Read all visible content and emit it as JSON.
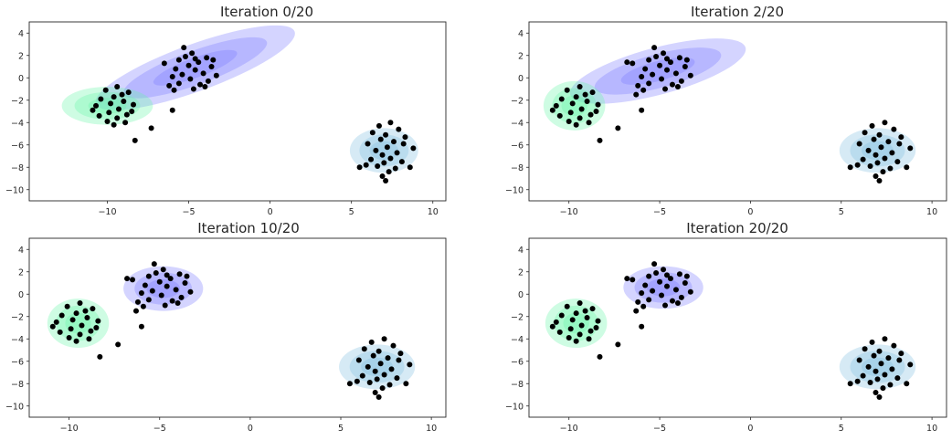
{
  "chart_data": [
    {
      "type": "scatter",
      "title": "Iteration 0/20",
      "xlim": [
        -14.8,
        10.8
      ],
      "ylim": [
        -11,
        5
      ],
      "xticks": [
        "−10",
        "−5",
        "0",
        "5",
        "10"
      ],
      "xtick_values": [
        -10,
        -5,
        0,
        5,
        10
      ],
      "yticks": [
        "4",
        "2",
        "0",
        "−2",
        "−4",
        "−6",
        "−8",
        "−10"
      ],
      "ytick_values": [
        4,
        2,
        0,
        -2,
        -4,
        -6,
        -8,
        -10
      ],
      "grid": false,
      "components": [
        {
          "color": "#7a7aff",
          "center": [
            -4.6,
            0.9
          ],
          "sd": [
            6.5,
            2.1
          ],
          "angle_deg": 20
        },
        {
          "color": "#66f5a8",
          "center": [
            -10.0,
            -2.5
          ],
          "sd": [
            2.8,
            1.7
          ],
          "angle_deg": 0
        },
        {
          "color": "#7fbfe0",
          "center": [
            7.0,
            -6.5
          ],
          "sd": [
            2.1,
            2.0
          ],
          "angle_deg": 0
        }
      ]
    },
    {
      "type": "scatter",
      "title": "Iteration 2/20",
      "xlim": [
        -12.2,
        10.8
      ],
      "ylim": [
        -11,
        5
      ],
      "xticks": [
        "−10",
        "−5",
        "0",
        "5",
        "10"
      ],
      "xtick_values": [
        -10,
        -5,
        0,
        5,
        10
      ],
      "yticks": [
        "4",
        "2",
        "0",
        "−2",
        "−4",
        "−6",
        "−8",
        "−10"
      ],
      "ytick_values": [
        4,
        2,
        0,
        -2,
        -4,
        -6,
        -8,
        -10
      ],
      "grid": false,
      "components": [
        {
          "color": "#7a7aff",
          "center": [
            -5.1,
            0.6
          ],
          "sd": [
            5.0,
            2.1
          ],
          "angle_deg": 15
        },
        {
          "color": "#66f5a8",
          "center": [
            -9.7,
            -2.5
          ],
          "sd": [
            1.7,
            2.2
          ],
          "angle_deg": 0
        },
        {
          "color": "#7fbfe0",
          "center": [
            7.0,
            -6.5
          ],
          "sd": [
            2.1,
            2.0
          ],
          "angle_deg": 0
        }
      ]
    },
    {
      "type": "scatter",
      "title": "Iteration 10/20",
      "xlim": [
        -12.2,
        10.8
      ],
      "ylim": [
        -11,
        5
      ],
      "xticks": [
        "−10",
        "−5",
        "0",
        "5",
        "10"
      ],
      "xtick_values": [
        -10,
        -5,
        0,
        5,
        10
      ],
      "yticks": [
        "4",
        "2",
        "0",
        "−2",
        "−4",
        "−6",
        "−8",
        "−10"
      ],
      "ytick_values": [
        4,
        2,
        0,
        -2,
        -4,
        -6,
        -8,
        -10
      ],
      "grid": false,
      "components": [
        {
          "color": "#7a7aff",
          "center": [
            -4.8,
            0.5
          ],
          "sd": [
            2.2,
            2.0
          ],
          "angle_deg": 0
        },
        {
          "color": "#66f5a8",
          "center": [
            -9.5,
            -2.6
          ],
          "sd": [
            1.7,
            2.2
          ],
          "angle_deg": 0
        },
        {
          "color": "#7fbfe0",
          "center": [
            7.0,
            -6.5
          ],
          "sd": [
            2.1,
            2.0
          ],
          "angle_deg": 0
        }
      ]
    },
    {
      "type": "scatter",
      "title": "Iteration 20/20",
      "xlim": [
        -12.2,
        10.8
      ],
      "ylim": [
        -11,
        5
      ],
      "xticks": [
        "−10",
        "−5",
        "0",
        "5",
        "10"
      ],
      "xtick_values": [
        -10,
        -5,
        0,
        5,
        10
      ],
      "yticks": [
        "4",
        "2",
        "0",
        "−2",
        "−4",
        "−6",
        "−8",
        "−10"
      ],
      "ytick_values": [
        4,
        2,
        0,
        -2,
        -4,
        -6,
        -8,
        -10
      ],
      "grid": false,
      "components": [
        {
          "color": "#7a7aff",
          "center": [
            -4.8,
            0.6
          ],
          "sd": [
            2.2,
            1.9
          ],
          "angle_deg": 0
        },
        {
          "color": "#66f5a8",
          "center": [
            -9.6,
            -2.6
          ],
          "sd": [
            1.7,
            2.2
          ],
          "angle_deg": 0
        },
        {
          "color": "#7fbfe0",
          "center": [
            7.0,
            -6.5
          ],
          "sd": [
            2.1,
            2.0
          ],
          "angle_deg": 0
        }
      ]
    }
  ],
  "points": [
    [
      -5.3,
      2.7
    ],
    [
      -4.8,
      2.2
    ],
    [
      -3.9,
      1.8
    ],
    [
      -5.6,
      1.6
    ],
    [
      -4.4,
      1.4
    ],
    [
      -6.5,
      1.3
    ],
    [
      -5.0,
      1.1
    ],
    [
      -3.6,
      1.0
    ],
    [
      -5.8,
      0.8
    ],
    [
      -4.6,
      0.7
    ],
    [
      -4.1,
      0.4
    ],
    [
      -5.4,
      0.3
    ],
    [
      -3.3,
      0.2
    ],
    [
      -6.0,
      0.1
    ],
    [
      -4.9,
      -0.1
    ],
    [
      -3.8,
      -0.3
    ],
    [
      -5.6,
      -0.5
    ],
    [
      -4.3,
      -0.6
    ],
    [
      -4.7,
      -1.0
    ],
    [
      -5.9,
      -1.1
    ],
    [
      -5.2,
      1.9
    ],
    [
      -3.5,
      1.6
    ],
    [
      -6.2,
      -0.7
    ],
    [
      -4.0,
      -0.8
    ],
    [
      -4.6,
      1.7
    ],
    [
      -9.4,
      -0.8
    ],
    [
      -10.1,
      -1.1
    ],
    [
      -8.7,
      -1.3
    ],
    [
      -9.6,
      -1.7
    ],
    [
      -10.4,
      -1.9
    ],
    [
      -9.0,
      -2.1
    ],
    [
      -9.8,
      -2.3
    ],
    [
      -8.4,
      -2.4
    ],
    [
      -10.7,
      -2.5
    ],
    [
      -9.3,
      -2.8
    ],
    [
      -9.9,
      -3.1
    ],
    [
      -8.8,
      -3.3
    ],
    [
      -10.5,
      -3.4
    ],
    [
      -9.4,
      -3.6
    ],
    [
      -10.0,
      -3.9
    ],
    [
      -8.9,
      -4.0
    ],
    [
      -9.6,
      -4.2
    ],
    [
      -8.5,
      -3.0
    ],
    [
      -10.9,
      -2.9
    ],
    [
      -9.1,
      -1.5
    ],
    [
      7.4,
      -4.0
    ],
    [
      6.7,
      -4.3
    ],
    [
      7.9,
      -4.6
    ],
    [
      6.3,
      -4.9
    ],
    [
      7.1,
      -5.1
    ],
    [
      8.3,
      -5.3
    ],
    [
      6.8,
      -5.5
    ],
    [
      7.6,
      -5.7
    ],
    [
      6.0,
      -5.9
    ],
    [
      8.8,
      -6.3
    ],
    [
      7.2,
      -6.2
    ],
    [
      6.5,
      -6.5
    ],
    [
      7.8,
      -6.7
    ],
    [
      6.9,
      -6.9
    ],
    [
      7.4,
      -7.2
    ],
    [
      6.2,
      -7.3
    ],
    [
      8.1,
      -7.5
    ],
    [
      7.0,
      -7.6
    ],
    [
      6.6,
      -7.9
    ],
    [
      5.9,
      -7.8
    ],
    [
      7.7,
      -8.1
    ],
    [
      8.6,
      -8.0
    ],
    [
      7.3,
      -8.4
    ],
    [
      6.9,
      -8.8
    ],
    [
      7.1,
      -9.2
    ],
    [
      5.5,
      -8.0
    ],
    [
      8.2,
      -5.9
    ]
  ],
  "extra_points": [
    [
      [
        -6.0,
        -2.9
      ],
      [
        -8.3,
        -5.6
      ],
      [
        -7.3,
        -4.5
      ]
    ],
    [
      [
        -6.0,
        -2.9
      ],
      [
        -8.3,
        -5.6
      ],
      [
        -7.3,
        -4.5
      ],
      [
        -6.8,
        1.4
      ],
      [
        -6.3,
        -1.5
      ]
    ],
    [
      [
        -6.0,
        -2.9
      ],
      [
        -8.3,
        -5.6
      ],
      [
        -7.3,
        -4.5
      ],
      [
        -6.8,
        1.4
      ],
      [
        -6.3,
        -1.5
      ]
    ],
    [
      [
        -6.0,
        -2.9
      ],
      [
        -8.3,
        -5.6
      ],
      [
        -7.3,
        -4.5
      ],
      [
        -6.8,
        1.4
      ],
      [
        -6.3,
        -1.5
      ]
    ]
  ],
  "point_color": "#000000"
}
